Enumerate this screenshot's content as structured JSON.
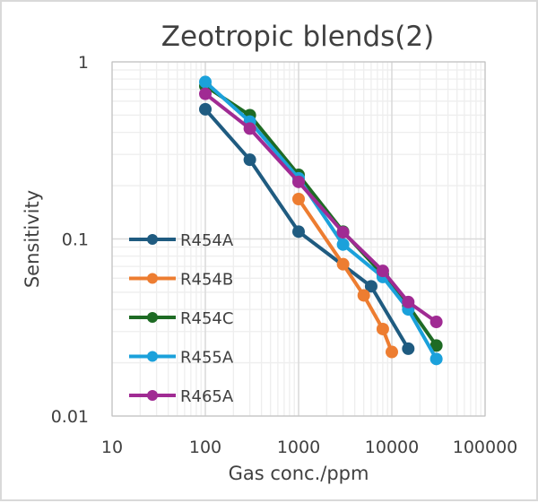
{
  "chart_data": {
    "type": "line",
    "title": "Zeotropic blends(2)",
    "xlabel": "Gas conc./ppm",
    "ylabel": "Sensitivity",
    "xscale": "log",
    "yscale": "log",
    "xlim": [
      10,
      100000
    ],
    "ylim": [
      0.01,
      1
    ],
    "x_ticks": [
      "10",
      "100",
      "1000",
      "10000",
      "100000"
    ],
    "y_ticks": [
      "1",
      "0.1",
      "0.01"
    ],
    "grid": "major and minor",
    "legend_position": "left-center inside plot",
    "series": [
      {
        "name": "R454A",
        "color": "#1f5b80",
        "points": [
          [
            100,
            0.54
          ],
          [
            300,
            0.28
          ],
          [
            1000,
            0.11
          ],
          [
            6000,
            0.054
          ],
          [
            15000,
            0.024
          ]
        ]
      },
      {
        "name": "R454B",
        "color": "#ed7d31",
        "points": [
          [
            1000,
            0.168
          ],
          [
            3000,
            0.072
          ],
          [
            5000,
            0.048
          ],
          [
            8000,
            0.031
          ],
          [
            10000,
            0.023
          ]
        ]
      },
      {
        "name": "R454C",
        "color": "#1e6b24",
        "points": [
          [
            100,
            0.73
          ],
          [
            300,
            0.5
          ],
          [
            1000,
            0.23
          ],
          [
            3000,
            0.11
          ],
          [
            8000,
            0.063
          ],
          [
            15000,
            0.042
          ],
          [
            30000,
            0.025
          ]
        ]
      },
      {
        "name": "R455A",
        "color": "#1ba1db",
        "points": [
          [
            100,
            0.77
          ],
          [
            300,
            0.46
          ],
          [
            1000,
            0.22
          ],
          [
            3000,
            0.093
          ],
          [
            8000,
            0.061
          ],
          [
            15000,
            0.04
          ],
          [
            30000,
            0.021
          ]
        ]
      },
      {
        "name": "R465A",
        "color": "#a02b93",
        "points": [
          [
            100,
            0.66
          ],
          [
            300,
            0.42
          ],
          [
            1000,
            0.21
          ],
          [
            3000,
            0.109
          ],
          [
            8000,
            0.066
          ],
          [
            15000,
            0.044
          ],
          [
            30000,
            0.034
          ]
        ]
      }
    ]
  }
}
